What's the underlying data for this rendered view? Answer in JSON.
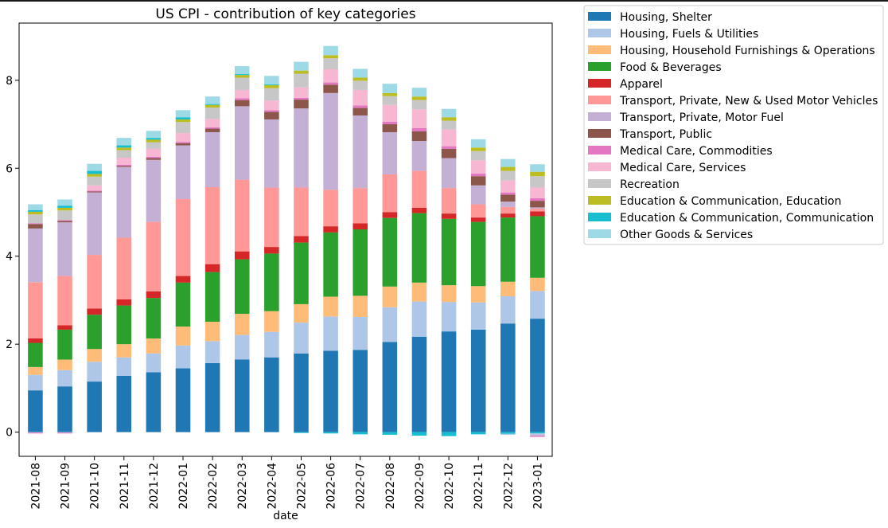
{
  "chart_data": {
    "type": "bar",
    "stacked": true,
    "title": "US CPI - contribution of key categories",
    "xlabel": "date",
    "ylabel": "",
    "ylim": [
      -0.55,
      9.3
    ],
    "yticks": [
      0,
      2,
      4,
      6,
      8
    ],
    "legend_position": "outside-right",
    "categories": [
      "2021-08",
      "2021-09",
      "2021-10",
      "2021-11",
      "2021-12",
      "2022-01",
      "2022-02",
      "2022-03",
      "2022-04",
      "2022-05",
      "2022-06",
      "2022-07",
      "2022-08",
      "2022-09",
      "2022-10",
      "2022-11",
      "2022-12",
      "2023-01"
    ],
    "series": [
      {
        "name": "Housing, Shelter",
        "color": "#1f77b4",
        "values": [
          0.95,
          1.04,
          1.15,
          1.28,
          1.36,
          1.45,
          1.57,
          1.65,
          1.7,
          1.79,
          1.85,
          1.87,
          2.05,
          2.17,
          2.29,
          2.33,
          2.47,
          2.58
        ]
      },
      {
        "name": "Housing, Fuels & Utilities",
        "color": "#aec7e8",
        "values": [
          0.35,
          0.37,
          0.45,
          0.42,
          0.43,
          0.52,
          0.5,
          0.56,
          0.58,
          0.7,
          0.78,
          0.75,
          0.79,
          0.8,
          0.67,
          0.62,
          0.62,
          0.63
        ]
      },
      {
        "name": "Housing, Household Furnishings & Operations",
        "color": "#ffbb78",
        "values": [
          0.18,
          0.24,
          0.29,
          0.3,
          0.34,
          0.43,
          0.44,
          0.48,
          0.47,
          0.42,
          0.45,
          0.48,
          0.47,
          0.43,
          0.38,
          0.37,
          0.33,
          0.3
        ]
      },
      {
        "name": "Food & Beverages",
        "color": "#2ca02c",
        "values": [
          0.55,
          0.68,
          0.78,
          0.88,
          0.92,
          1.0,
          1.13,
          1.24,
          1.31,
          1.4,
          1.46,
          1.51,
          1.56,
          1.58,
          1.51,
          1.46,
          1.46,
          1.4
        ]
      },
      {
        "name": "Apparel",
        "color": "#d62728",
        "values": [
          0.1,
          0.1,
          0.14,
          0.14,
          0.15,
          0.15,
          0.18,
          0.18,
          0.15,
          0.15,
          0.14,
          0.14,
          0.13,
          0.12,
          0.12,
          0.1,
          0.09,
          0.11
        ]
      },
      {
        "name": "Transport, Private, New & Used Motor Vehicles",
        "color": "#ff9896",
        "values": [
          1.28,
          1.12,
          1.22,
          1.4,
          1.58,
          1.75,
          1.75,
          1.63,
          1.35,
          1.1,
          0.83,
          0.8,
          0.86,
          0.84,
          0.58,
          0.3,
          0.15,
          0.06
        ]
      },
      {
        "name": "Transport, Private, Motor Fuel",
        "color": "#c5b0d5",
        "values": [
          1.22,
          1.22,
          1.42,
          1.61,
          1.41,
          1.22,
          1.25,
          1.67,
          1.55,
          1.8,
          2.2,
          1.65,
          0.96,
          0.68,
          0.68,
          0.43,
          0.12,
          0.03
        ]
      },
      {
        "name": "Transport, Public",
        "color": "#8c564b",
        "values": [
          0.1,
          0.03,
          0.02,
          0.02,
          0.04,
          0.05,
          0.08,
          0.14,
          0.17,
          0.2,
          0.19,
          0.17,
          0.18,
          0.22,
          0.21,
          0.21,
          0.16,
          0.15
        ]
      },
      {
        "name": "Medical Care, Commodities",
        "color": "#e377c2",
        "values": [
          0.02,
          0.02,
          0.02,
          0.03,
          0.03,
          0.03,
          0.03,
          0.04,
          0.04,
          0.04,
          0.05,
          0.06,
          0.06,
          0.07,
          0.06,
          0.06,
          0.05,
          0.06
        ]
      },
      {
        "name": "Medical Care, Services",
        "color": "#f7b6d2",
        "values": [
          0.0,
          0.0,
          0.12,
          0.16,
          0.18,
          0.2,
          0.19,
          0.19,
          0.22,
          0.24,
          0.3,
          0.35,
          0.38,
          0.43,
          0.38,
          0.3,
          0.27,
          0.24
        ]
      },
      {
        "name": "Recreation",
        "color": "#c7c7c7",
        "values": [
          0.2,
          0.22,
          0.2,
          0.17,
          0.15,
          0.25,
          0.26,
          0.28,
          0.28,
          0.31,
          0.25,
          0.21,
          0.2,
          0.21,
          0.2,
          0.21,
          0.22,
          0.26
        ]
      },
      {
        "name": "Education & Communication, Education",
        "color": "#bcbd22",
        "values": [
          0.06,
          0.06,
          0.06,
          0.06,
          0.06,
          0.06,
          0.06,
          0.06,
          0.07,
          0.07,
          0.07,
          0.07,
          0.07,
          0.08,
          0.08,
          0.08,
          0.09,
          0.1
        ]
      },
      {
        "name": "Education & Communication, Communication",
        "color": "#17becf",
        "values": [
          0.04,
          0.05,
          0.07,
          0.05,
          0.04,
          0.05,
          0.02,
          0.02,
          0.02,
          -0.02,
          -0.03,
          -0.05,
          -0.06,
          -0.08,
          -0.09,
          -0.05,
          -0.04,
          -0.03
        ]
      },
      {
        "name": "Other Goods & Services",
        "color": "#9edae5",
        "values": [
          0.13,
          0.14,
          0.16,
          0.17,
          0.16,
          0.16,
          0.17,
          0.18,
          0.19,
          0.2,
          0.21,
          0.2,
          0.21,
          0.2,
          0.19,
          0.19,
          0.18,
          0.17
        ]
      }
    ],
    "negatives_visible": {
      "Housing, Fuels & Utilities": [
        -0.01,
        -0.01,
        0,
        0,
        0,
        0,
        0,
        0,
        0,
        0,
        0,
        0,
        0,
        0,
        0,
        0,
        -0.02,
        -0.02
      ],
      "Transport, Private, Motor Fuel": [
        0,
        0,
        0,
        0,
        0,
        0,
        0,
        0,
        0,
        0,
        0,
        0,
        0,
        0,
        0,
        0,
        0,
        -0.04
      ],
      "Medical Care, Commodities": [
        -0.02,
        -0.02,
        0,
        0,
        0,
        0,
        0,
        0,
        0,
        0,
        0,
        0,
        0,
        0,
        0,
        0,
        0,
        -0.02
      ]
    }
  }
}
